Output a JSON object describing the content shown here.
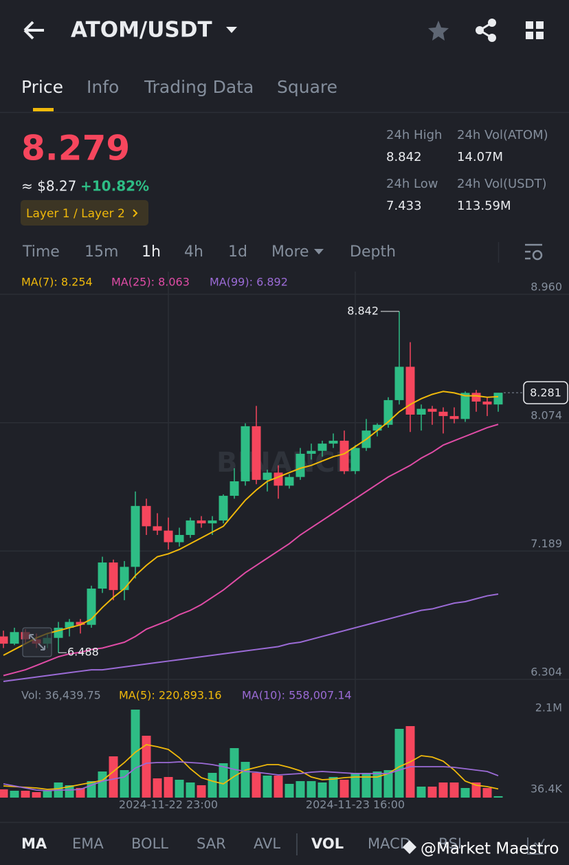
{
  "header": {
    "title": "ATOM/USDT"
  },
  "tabs": [
    "Price",
    "Info",
    "Trading Data",
    "Square"
  ],
  "ticker": {
    "price": "8.279",
    "usd": "≈ $8.27",
    "change": "+10.82%",
    "tag": "Layer 1 / Layer 2"
  },
  "stats": [
    {
      "label": "24h High",
      "value": "8.842"
    },
    {
      "label": "24h Vol(ATOM)",
      "value": "14.07M"
    },
    {
      "label": "24h Low",
      "value": "7.433"
    },
    {
      "label": "24h Vol(USDT)",
      "value": "113.59M"
    }
  ],
  "intervals": [
    "Time",
    "15m",
    "1h",
    "4h",
    "1d",
    "More",
    "Depth"
  ],
  "watermark_logo": "BINANCE",
  "chart_data": {
    "type": "candlestick",
    "categories": [
      null,
      null,
      null,
      null,
      null,
      null,
      null,
      null,
      null,
      null,
      null,
      null,
      null,
      null,
      null,
      "2024-11-22 23:00",
      null,
      null,
      null,
      null,
      null,
      null,
      null,
      null,
      null,
      null,
      null,
      null,
      null,
      null,
      null,
      null,
      "2024-11-23 16:00",
      null,
      null,
      null,
      null,
      null,
      null,
      null,
      null,
      null,
      null,
      null,
      null,
      null
    ],
    "open": [
      6.6,
      6.55,
      6.63,
      6.58,
      6.55,
      6.59,
      6.66,
      6.7,
      6.68,
      6.93,
      7.11,
      6.92,
      7.08,
      7.5,
      7.36,
      7.33,
      7.25,
      7.3,
      7.4,
      7.38,
      7.4,
      7.57,
      7.67,
      8.05,
      7.68,
      7.73,
      7.64,
      7.7,
      7.86,
      7.88,
      7.93,
      7.95,
      7.74,
      7.9,
      8.02,
      8.06,
      8.23,
      8.46,
      8.13,
      8.17,
      8.15,
      8.12,
      8.1,
      8.28,
      8.22,
      8.2
    ],
    "high": [
      6.64,
      6.66,
      6.65,
      6.62,
      6.62,
      6.7,
      6.72,
      6.72,
      6.95,
      7.15,
      7.13,
      7.12,
      7.6,
      7.55,
      7.45,
      7.42,
      7.35,
      7.42,
      7.43,
      7.43,
      7.58,
      7.76,
      8.07,
      8.19,
      7.75,
      7.78,
      7.72,
      7.9,
      7.93,
      7.95,
      8.0,
      8.02,
      7.92,
      8.1,
      8.07,
      8.25,
      8.842,
      8.63,
      8.2,
      8.19,
      8.18,
      8.18,
      8.29,
      8.3,
      8.25,
      8.28
    ],
    "low": [
      6.52,
      6.54,
      6.55,
      6.52,
      6.52,
      6.488,
      6.6,
      6.62,
      6.66,
      6.9,
      6.85,
      6.85,
      7.0,
      7.3,
      7.3,
      7.2,
      7.22,
      7.28,
      7.35,
      7.3,
      7.38,
      7.55,
      7.64,
      7.65,
      7.6,
      7.55,
      7.62,
      7.68,
      7.82,
      7.84,
      7.9,
      7.72,
      7.72,
      7.88,
      7.98,
      8.04,
      8.2,
      8.01,
      8.02,
      8.06,
      8.0,
      8.07,
      8.08,
      8.15,
      8.12,
      8.15
    ],
    "close": [
      6.55,
      6.63,
      6.58,
      6.55,
      6.59,
      6.66,
      6.7,
      6.68,
      6.93,
      7.11,
      6.92,
      7.08,
      7.5,
      7.36,
      7.33,
      7.25,
      7.3,
      7.4,
      7.38,
      7.4,
      7.57,
      7.67,
      8.05,
      7.68,
      7.73,
      7.64,
      7.7,
      7.86,
      7.88,
      7.93,
      7.95,
      7.74,
      7.9,
      8.02,
      8.06,
      8.23,
      8.46,
      8.13,
      8.17,
      8.15,
      8.12,
      8.1,
      8.28,
      8.22,
      8.2,
      8.281
    ],
    "up_color": "#2ebd85",
    "down_color": "#f6465d",
    "ylim": [
      6.304,
      8.96
    ],
    "yticks": [
      {
        "value": 8.96,
        "label": "8.960"
      },
      8.074,
      7.189,
      6.304
    ],
    "grid": true,
    "series": [
      {
        "legend": "MA(7): 8.254",
        "color": "#f0b90b",
        "values": [
          6.47,
          6.51,
          6.55,
          6.59,
          6.62,
          6.64,
          6.66,
          6.68,
          6.72,
          6.8,
          6.87,
          6.93,
          7.02,
          7.09,
          7.15,
          7.17,
          7.2,
          7.24,
          7.28,
          7.32,
          7.36,
          7.45,
          7.54,
          7.61,
          7.67,
          7.7,
          7.73,
          7.76,
          7.78,
          7.81,
          7.84,
          7.86,
          7.91,
          7.96,
          8.02,
          8.08,
          8.15,
          8.2,
          8.24,
          8.27,
          8.29,
          8.28,
          8.26,
          8.26,
          8.25,
          8.254
        ]
      },
      {
        "legend": "MA(25): 8.063",
        "color": "#e04ca6",
        "values": [
          6.33,
          6.35,
          6.37,
          6.4,
          6.43,
          6.46,
          6.48,
          6.49,
          6.51,
          6.52,
          6.54,
          6.56,
          6.6,
          6.65,
          6.68,
          6.71,
          6.75,
          6.78,
          6.82,
          6.87,
          6.92,
          6.98,
          7.04,
          7.09,
          7.14,
          7.19,
          7.24,
          7.3,
          7.35,
          7.4,
          7.45,
          7.5,
          7.55,
          7.6,
          7.65,
          7.7,
          7.74,
          7.78,
          7.83,
          7.87,
          7.92,
          7.95,
          7.98,
          8.01,
          8.04,
          8.063
        ]
      },
      {
        "legend": "MA(99): 6.892",
        "color": "#9b6bd6",
        "values": [
          6.29,
          6.3,
          6.31,
          6.32,
          6.33,
          6.34,
          6.35,
          6.36,
          6.37,
          6.37,
          6.38,
          6.39,
          6.4,
          6.41,
          6.42,
          6.43,
          6.44,
          6.45,
          6.46,
          6.47,
          6.48,
          6.49,
          6.5,
          6.51,
          6.52,
          6.53,
          6.55,
          6.56,
          6.58,
          6.6,
          6.62,
          6.64,
          6.66,
          6.68,
          6.7,
          6.72,
          6.74,
          6.76,
          6.78,
          6.79,
          6.81,
          6.83,
          6.84,
          6.86,
          6.88,
          6.892
        ]
      }
    ]
  },
  "volume_chart": {
    "type": "bar",
    "legend": "Vol: 36,439.75",
    "values": [
      210000,
      175000,
      175000,
      140000,
      175000,
      385000,
      315000,
      245000,
      420000,
      665000,
      1050000,
      700000,
      2240000,
      1575000,
      490000,
      525000,
      455000,
      385000,
      315000,
      630000,
      875000,
      1260000,
      910000,
      630000,
      560000,
      560000,
      350000,
      420000,
      420000,
      385000,
      525000,
      455000,
      630000,
      630000,
      665000,
      700000,
      1750000,
      1820000,
      280000,
      280000,
      385000,
      385000,
      245000,
      385000,
      245000,
      36439.75
    ],
    "ylim": [
      0,
      2450000
    ],
    "yticks": [
      {
        "value": 2100000,
        "label": "2.1M"
      },
      {
        "value": 36400,
        "label": "36.4K"
      }
    ],
    "series": [
      {
        "legend": "MA(5): 220,893.16",
        "color": "#f0b90b",
        "values": [
          297500,
          280000,
          262500,
          245000,
          210000,
          227500,
          280000,
          332500,
          385000,
          437500,
          665000,
          892500,
          1155000,
          1347500,
          1295000,
          1225000,
          1015000,
          735000,
          507500,
          420000,
          350000,
          542500,
          700000,
          770000,
          840000,
          840000,
          770000,
          682500,
          525000,
          455000,
          472500,
          507500,
          525000,
          525000,
          525000,
          612500,
          787500,
          910000,
          1067500,
          1032500,
          927500,
          700000,
          420000,
          315000,
          280000,
          220893.16
        ]
      },
      {
        "legend": "MA(10): 558,007.14",
        "color": "#9b6bd6",
        "values": [
          350000,
          297500,
          245000,
          192500,
          175000,
          192500,
          192500,
          210000,
          315000,
          420000,
          472500,
          525000,
          752500,
          875000,
          892500,
          892500,
          910000,
          892500,
          875000,
          840000,
          787500,
          717500,
          665000,
          647500,
          612500,
          577500,
          595000,
          612500,
          647500,
          665000,
          647500,
          630000,
          612500,
          612500,
          612500,
          612500,
          700000,
          787500,
          787500,
          787500,
          787500,
          770000,
          735000,
          700000,
          665000,
          558007.14
        ]
      }
    ]
  },
  "indicators": [
    "MA",
    "EMA",
    "BOLL",
    "SAR",
    "AVL",
    "VOL",
    "MACD",
    "RSI"
  ],
  "credit": "@Market Maestro"
}
